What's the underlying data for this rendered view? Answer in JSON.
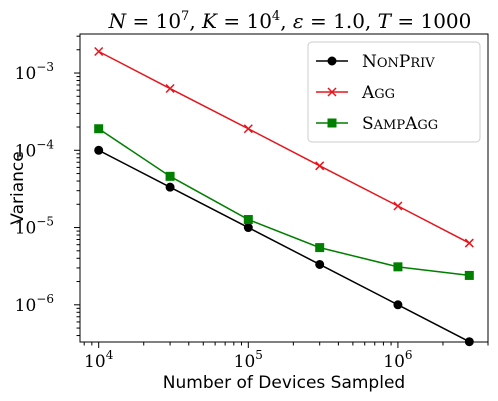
{
  "chart_data": {
    "type": "line",
    "title": "N = 10^7, K = 10^4, ε = 1.0, T = 1000",
    "xlabel": "Number of Devices Sampled",
    "ylabel": "Variance",
    "x_scale": "log",
    "y_scale": "log",
    "xlim": [
      7500,
      4000000
    ],
    "ylim": [
      3.3e-07,
      0.0032
    ],
    "x_ticks": [
      10000,
      100000,
      1000000
    ],
    "x_tick_labels": [
      {
        "base": "10",
        "exp": "4"
      },
      {
        "base": "10",
        "exp": "5"
      },
      {
        "base": "10",
        "exp": "6"
      }
    ],
    "y_ticks": [
      0.001,
      0.0001,
      1e-05,
      1e-06
    ],
    "y_tick_labels": [
      {
        "base": "10",
        "exp": "−3"
      },
      {
        "base": "10",
        "exp": "−4"
      },
      {
        "base": "10",
        "exp": "−5"
      },
      {
        "base": "10",
        "exp": "−6"
      }
    ],
    "x": [
      10000,
      30000,
      100000,
      300000,
      1000000,
      3000000
    ],
    "grid": false,
    "legend_position": "top-right",
    "series": [
      {
        "name": "NonPriv",
        "name_display": [
          {
            "t": "N",
            "big": true
          },
          {
            "t": "ON",
            "big": false
          },
          {
            "t": "P",
            "big": true
          },
          {
            "t": "RIV",
            "big": false
          }
        ],
        "color": "#000000",
        "marker": "circle",
        "values": [
          0.0001,
          3.33e-05,
          1e-05,
          3.33e-06,
          1e-06,
          3.33e-07
        ]
      },
      {
        "name": "Agg",
        "name_display": [
          {
            "t": "A",
            "big": true
          },
          {
            "t": "GG",
            "big": false
          }
        ],
        "color": "#e8141b",
        "marker": "x",
        "values": [
          0.0019,
          0.00063,
          0.00019,
          6.3e-05,
          1.9e-05,
          6.3e-06
        ]
      },
      {
        "name": "SampAgg",
        "name_display": [
          {
            "t": "S",
            "big": true
          },
          {
            "t": "AMP",
            "big": false
          },
          {
            "t": "A",
            "big": true
          },
          {
            "t": "GG",
            "big": false
          }
        ],
        "color": "#007f00",
        "marker": "square",
        "values": [
          0.00019,
          4.6e-05,
          1.27e-05,
          5.5e-06,
          3.1e-06,
          2.4e-06
        ]
      }
    ]
  }
}
